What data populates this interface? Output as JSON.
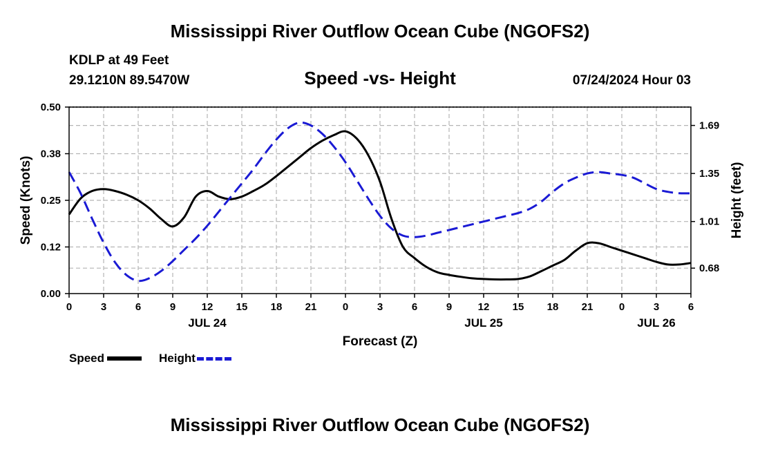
{
  "header": {
    "title": "Mississippi River Outflow Ocean Cube (NGOFS2)",
    "station": "KDLP at 49 Feet",
    "coords": "29.1210N  89.5470W",
    "subtitle": "Speed -vs- Height",
    "datetime": "07/24/2024 Hour 03"
  },
  "footer": {
    "title": "Mississippi River Outflow Ocean Cube (NGOFS2)"
  },
  "legend": {
    "speed_label": "Speed",
    "height_label": "Height"
  },
  "colors": {
    "speed": "#000000",
    "height": "#1a1ad4",
    "grid": "#b4b4b4"
  },
  "chart_data": {
    "type": "line",
    "title": "Speed -vs- Height",
    "xlabel": "Forecast (Z)",
    "ylabel": "Speed (Knots)",
    "y2label": "Height (feet)",
    "x_range": [
      0,
      54
    ],
    "x_ticks": [
      0,
      3,
      6,
      9,
      12,
      15,
      18,
      21,
      24,
      27,
      30,
      33,
      36,
      39,
      42,
      45,
      48,
      51,
      54
    ],
    "x_tick_labels": [
      "0",
      "3",
      "6",
      "9",
      "12",
      "15",
      "18",
      "21",
      "0",
      "3",
      "6",
      "9",
      "12",
      "15",
      "18",
      "21",
      "0",
      "3",
      "6"
    ],
    "date_labels": [
      {
        "x": 12,
        "label": "JUL 24"
      },
      {
        "x": 36,
        "label": "JUL 25"
      },
      {
        "x": 51,
        "label": "JUL 26"
      }
    ],
    "ylim": [
      0,
      0.5
    ],
    "y_ticks": [
      0,
      0.125,
      0.25,
      0.375,
      0.5
    ],
    "y_tick_labels": [
      "0.00",
      "0.12",
      "0.25",
      "0.38",
      "0.50"
    ],
    "y2lim": [
      0.5,
      1.82
    ],
    "y2_ticks": [
      0.68,
      1.01,
      1.35,
      1.69
    ],
    "y2_tick_labels": [
      "0.68",
      "1.01",
      "1.35",
      "1.69"
    ],
    "grid": true,
    "series": [
      {
        "name": "Speed",
        "axis": "left",
        "style": "solid",
        "x": [
          0,
          1,
          2,
          3,
          4,
          5,
          6,
          7,
          8,
          9,
          10,
          11,
          12,
          13,
          14,
          15,
          16,
          17,
          18,
          19,
          20,
          21,
          22,
          23,
          24,
          25,
          26,
          27,
          28,
          29,
          30,
          31,
          32,
          33,
          34,
          35,
          36,
          37,
          38,
          39,
          40,
          41,
          42,
          43,
          44,
          45,
          46,
          47,
          48,
          49,
          50,
          51,
          52,
          53,
          54
        ],
        "values": [
          0.212,
          0.255,
          0.275,
          0.28,
          0.275,
          0.265,
          0.25,
          0.228,
          0.2,
          0.18,
          0.205,
          0.26,
          0.275,
          0.26,
          0.253,
          0.26,
          0.275,
          0.292,
          0.315,
          0.34,
          0.365,
          0.39,
          0.41,
          0.425,
          0.435,
          0.415,
          0.37,
          0.3,
          0.2,
          0.125,
          0.095,
          0.072,
          0.057,
          0.05,
          0.045,
          0.041,
          0.039,
          0.038,
          0.038,
          0.039,
          0.046,
          0.06,
          0.075,
          0.09,
          0.115,
          0.135,
          0.135,
          0.125,
          0.115,
          0.105,
          0.095,
          0.085,
          0.078,
          0.078,
          0.082
        ]
      },
      {
        "name": "Height",
        "axis": "right",
        "style": "dashed",
        "x": [
          0,
          1,
          2,
          3,
          4,
          5,
          6,
          7,
          8,
          9,
          10,
          11,
          12,
          13,
          14,
          15,
          16,
          17,
          18,
          19,
          20,
          21,
          22,
          23,
          24,
          25,
          26,
          27,
          28,
          29,
          30,
          31,
          32,
          33,
          34,
          35,
          36,
          37,
          38,
          39,
          40,
          41,
          42,
          43,
          44,
          45,
          46,
          47,
          48,
          49,
          50,
          51,
          52,
          53,
          54
        ],
        "values": [
          1.36,
          1.21,
          1.03,
          0.86,
          0.72,
          0.63,
          0.59,
          0.61,
          0.66,
          0.73,
          0.81,
          0.89,
          0.98,
          1.08,
          1.18,
          1.28,
          1.38,
          1.49,
          1.59,
          1.67,
          1.71,
          1.69,
          1.63,
          1.54,
          1.43,
          1.3,
          1.17,
          1.05,
          0.96,
          0.91,
          0.9,
          0.91,
          0.93,
          0.95,
          0.97,
          0.99,
          1.01,
          1.03,
          1.05,
          1.07,
          1.1,
          1.15,
          1.22,
          1.28,
          1.32,
          1.35,
          1.36,
          1.35,
          1.34,
          1.32,
          1.28,
          1.24,
          1.22,
          1.21,
          1.21
        ]
      }
    ]
  }
}
